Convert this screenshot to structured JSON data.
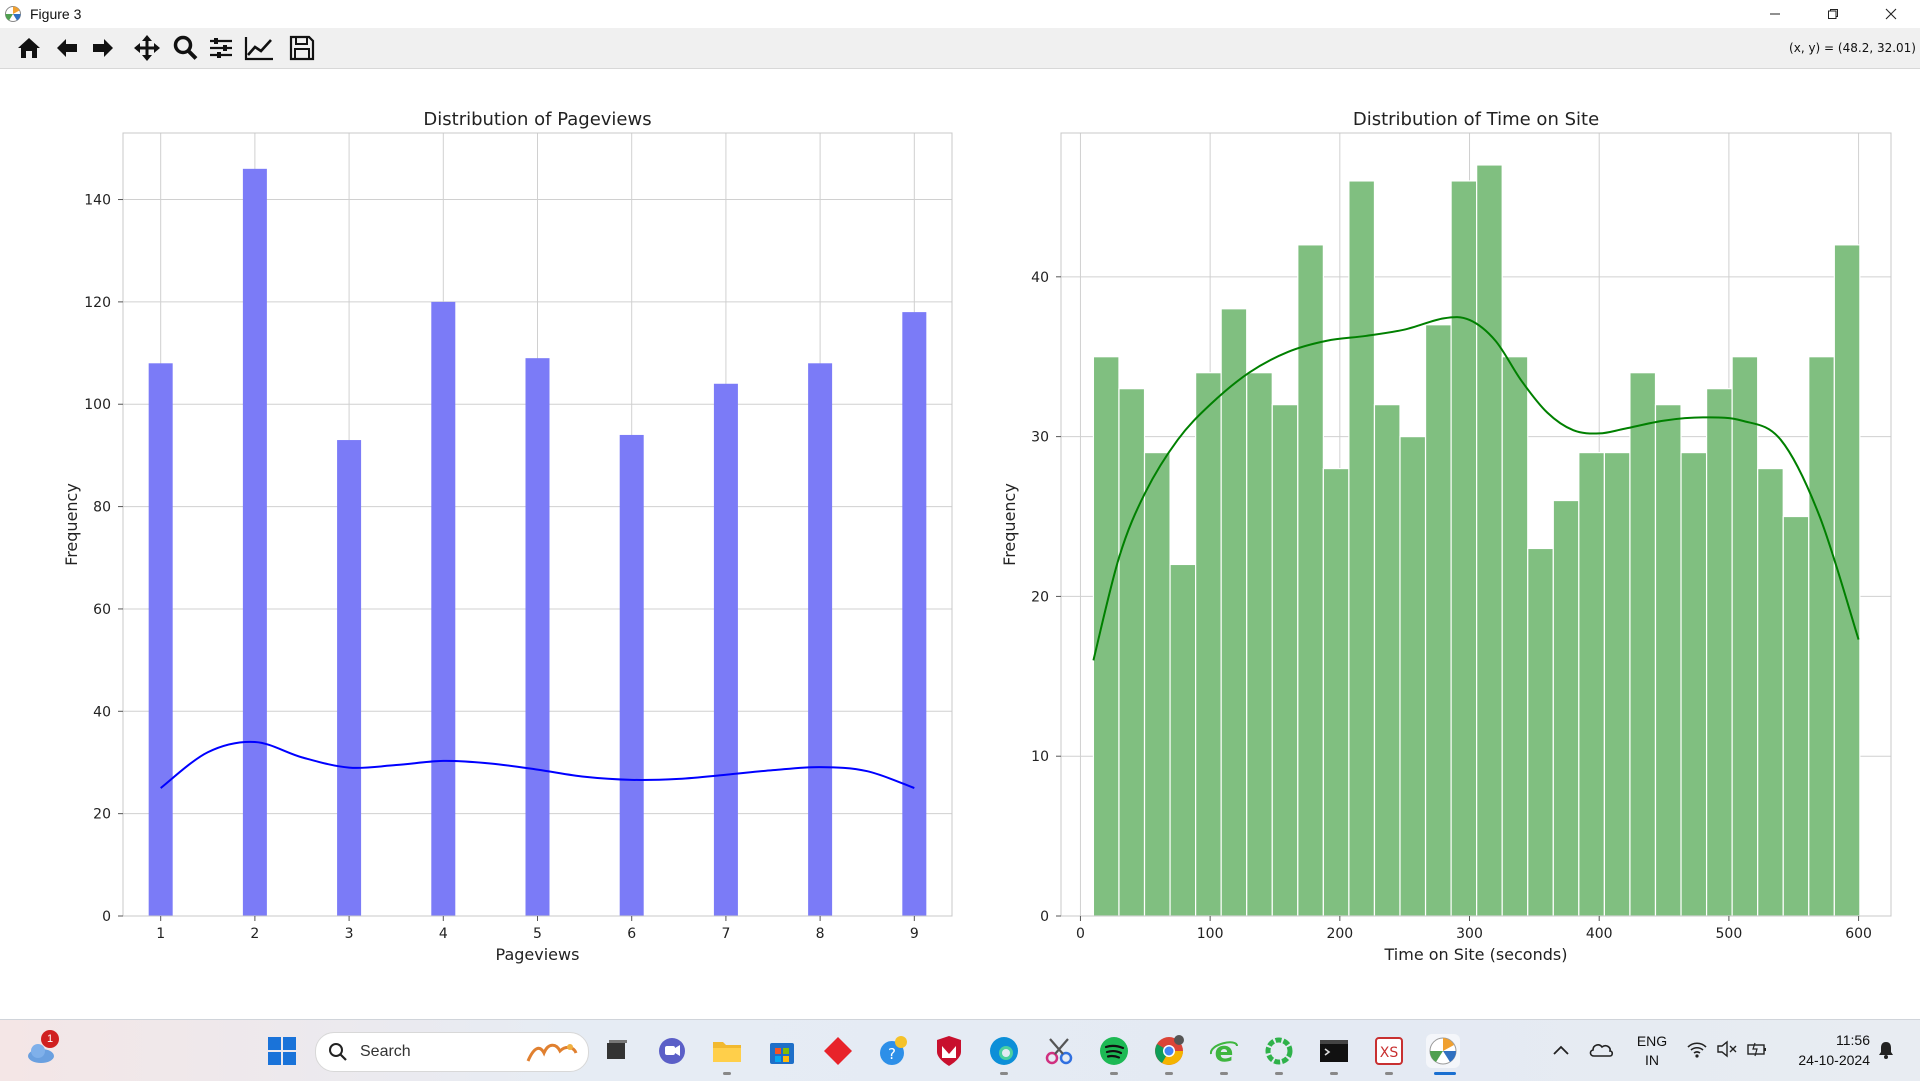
{
  "window": {
    "title": "Figure 3",
    "coords_readout": "(x, y) = (48.2, 32.01)"
  },
  "toolbar": {
    "buttons": [
      "home-icon",
      "back-arrow-icon",
      "forward-arrow-icon",
      "pan-icon",
      "zoom-icon",
      "configure-subplots-icon",
      "edit-axis-icon",
      "save-icon"
    ]
  },
  "colors": {
    "bar_left": "#7b7bf7",
    "kde_left": "#0000ff",
    "bar_right": "#80bf80",
    "kde_right": "#008000",
    "grid": "#d0d0d0"
  },
  "chart_data": [
    {
      "type": "bar",
      "title": "Distribution of Pageviews",
      "xlabel": "Pageviews",
      "ylabel": "Frequency",
      "categories": [
        1,
        2,
        3,
        4,
        5,
        6,
        7,
        8,
        9
      ],
      "values": [
        108,
        146,
        93,
        120,
        109,
        94,
        104,
        108,
        118
      ],
      "xlim": [
        0.6,
        9.4
      ],
      "ylim": [
        0,
        153
      ],
      "xticks": [
        1,
        2,
        3,
        4,
        5,
        6,
        7,
        8,
        9
      ],
      "yticks": [
        0,
        20,
        40,
        60,
        80,
        100,
        120,
        140
      ],
      "grid": true,
      "kde": {
        "x": [
          1,
          1.5,
          2,
          2.5,
          3,
          3.5,
          4,
          4.5,
          5,
          5.5,
          6,
          6.5,
          7,
          7.5,
          8,
          8.5,
          9
        ],
        "y": [
          25,
          32,
          34,
          31,
          29,
          29.5,
          30.3,
          29.8,
          28.6,
          27.2,
          26.6,
          26.8,
          27.6,
          28.5,
          29.1,
          28.3,
          25
        ]
      }
    },
    {
      "type": "bar",
      "title": "Distribution of Time on Site",
      "xlabel": "Time on Site (seconds)",
      "ylabel": "Frequency",
      "bin_start": 10,
      "bin_width": 19.7,
      "values": [
        35,
        33,
        29,
        22,
        34,
        38,
        34,
        32,
        42,
        28,
        46,
        32,
        30,
        37,
        46,
        47,
        35,
        23,
        26,
        29,
        29,
        34,
        32,
        29,
        33,
        35,
        28,
        25,
        35,
        42
      ],
      "xlim": [
        -15,
        625
      ],
      "ylim": [
        0,
        49
      ],
      "xticks": [
        0,
        100,
        200,
        300,
        400,
        500,
        600
      ],
      "yticks": [
        0,
        10,
        20,
        30,
        40
      ],
      "grid": true,
      "kde": {
        "x": [
          10,
          30,
          50,
          75,
          100,
          130,
          160,
          190,
          220,
          250,
          280,
          300,
          320,
          340,
          360,
          380,
          400,
          420,
          450,
          480,
          510,
          540,
          570,
          600
        ],
        "y": [
          16,
          22.5,
          26.5,
          29.8,
          32,
          34,
          35.3,
          36,
          36.3,
          36.7,
          37.4,
          37.3,
          36,
          33.5,
          31.5,
          30.4,
          30.2,
          30.5,
          31,
          31.2,
          31,
          29.8,
          25,
          17.3
        ]
      }
    }
  ],
  "taskbar": {
    "search_placeholder": "Search",
    "weather_badge": "1",
    "language": "ENG",
    "region": "IN",
    "time": "11:56",
    "date": "24-10-2024"
  }
}
